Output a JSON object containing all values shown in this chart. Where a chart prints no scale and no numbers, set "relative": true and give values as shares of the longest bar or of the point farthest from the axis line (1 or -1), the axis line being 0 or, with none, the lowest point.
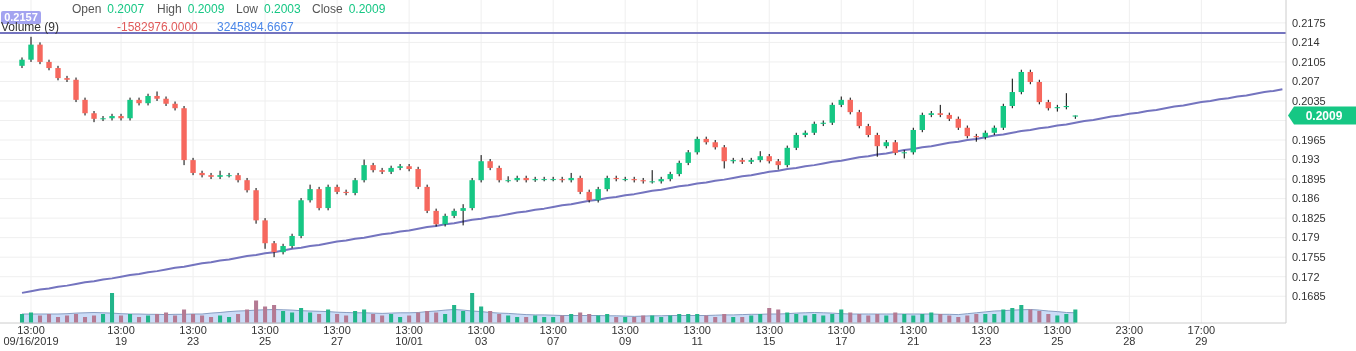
{
  "chart_data": [
    {
      "type": "candlestick",
      "categories": [
        null,
        "13:00\n09/16/2019",
        null,
        null,
        null,
        null,
        null,
        null,
        null,
        null,
        null,
        "13:00\n19",
        null,
        null,
        null,
        null,
        null,
        null,
        null,
        "13:00\n23",
        null,
        null,
        null,
        null,
        null,
        null,
        null,
        "13:00\n25",
        null,
        null,
        null,
        null,
        null,
        null,
        null,
        "13:00\n27",
        null,
        null,
        null,
        null,
        null,
        null,
        null,
        "13:00\n10/01",
        null,
        null,
        null,
        null,
        null,
        null,
        null,
        "13:00\n03",
        null,
        null,
        null,
        null,
        null,
        null,
        null,
        "13:00\n07",
        null,
        null,
        null,
        null,
        null,
        null,
        null,
        "13:00\n09",
        null,
        null,
        null,
        null,
        null,
        null,
        null,
        "13:00\n11",
        null,
        null,
        null,
        null,
        null,
        null,
        null,
        "13:00\n15",
        null,
        null,
        null,
        null,
        null,
        null,
        null,
        "13:00\n17",
        null,
        null,
        null,
        null,
        null,
        null,
        null,
        "13:00\n21",
        null,
        null,
        null,
        null,
        null,
        null,
        null,
        "13:00\n23",
        null,
        null,
        null,
        null,
        null,
        null,
        null,
        "13:00\n25",
        null,
        null,
        null,
        null,
        null,
        null,
        null,
        "23:00\n28",
        null,
        null,
        null,
        null,
        null,
        null,
        null,
        "17:00\n29",
        null,
        null,
        null,
        null,
        null,
        null,
        null,
        null,
        null
      ],
      "ohlc": [
        [
          0.2098,
          0.2113,
          0.2094,
          0.2109
        ],
        [
          0.2109,
          0.215,
          0.2105,
          0.2136
        ],
        [
          0.2136,
          0.214,
          0.2101,
          0.2105
        ],
        [
          0.2105,
          0.2109,
          0.209,
          0.2094
        ],
        [
          0.2094,
          0.2098,
          0.2072,
          0.2076
        ],
        [
          0.2076,
          0.208,
          0.2069,
          0.2073
        ],
        [
          0.2073,
          0.2077,
          0.2033,
          0.2037
        ],
        [
          0.2037,
          0.2041,
          0.2009,
          0.2013
        ],
        [
          0.2013,
          0.2017,
          0.1997,
          0.2003
        ],
        [
          0.2003,
          0.2008,
          0.1999,
          0.2004
        ],
        [
          0.2004,
          0.2012,
          0.2,
          0.2008
        ],
        [
          0.2008,
          0.2012,
          0.2,
          0.2004
        ],
        [
          0.2004,
          0.2041,
          0.2,
          0.2037
        ],
        [
          0.2037,
          0.2041,
          0.2027,
          0.2031
        ],
        [
          0.2031,
          0.2048,
          0.2027,
          0.2044
        ],
        [
          0.2044,
          0.2052,
          0.2035,
          0.2039
        ],
        [
          0.2039,
          0.2043,
          0.2026,
          0.203
        ],
        [
          0.203,
          0.2034,
          0.2018,
          0.2022
        ],
        [
          0.2022,
          0.2026,
          0.192,
          0.1929
        ],
        [
          0.1929,
          0.1933,
          0.1902,
          0.1906
        ],
        [
          0.1906,
          0.191,
          0.1898,
          0.1902
        ],
        [
          0.1902,
          0.1906,
          0.1895,
          0.1899
        ],
        [
          0.1899,
          0.191,
          0.1895,
          0.1902
        ],
        [
          0.1902,
          0.1906,
          0.1898,
          0.1902
        ],
        [
          0.1902,
          0.1906,
          0.1889,
          0.1893
        ],
        [
          0.1893,
          0.1897,
          0.1871,
          0.1875
        ],
        [
          0.1875,
          0.1879,
          0.1815,
          0.1821
        ],
        [
          0.1821,
          0.1825,
          0.177,
          0.178
        ],
        [
          0.178,
          0.1784,
          0.1755,
          0.1764
        ],
        [
          0.1764,
          0.1779,
          0.176,
          0.1775
        ],
        [
          0.1775,
          0.1797,
          0.1771,
          0.1793
        ],
        [
          0.1793,
          0.1861,
          0.1789,
          0.1857
        ],
        [
          0.1857,
          0.1885,
          0.1853,
          0.1877
        ],
        [
          0.1877,
          0.1881,
          0.1839,
          0.1843
        ],
        [
          0.1843,
          0.1885,
          0.1839,
          0.1881
        ],
        [
          0.1881,
          0.1885,
          0.1868,
          0.1872
        ],
        [
          0.1872,
          0.1876,
          0.1866,
          0.187
        ],
        [
          0.187,
          0.1897,
          0.1866,
          0.1893
        ],
        [
          0.1893,
          0.193,
          0.1889,
          0.192
        ],
        [
          0.192,
          0.1924,
          0.1907,
          0.1911
        ],
        [
          0.1911,
          0.1915,
          0.1904,
          0.1908
        ],
        [
          0.1908,
          0.1919,
          0.1904,
          0.1915
        ],
        [
          0.1915,
          0.1922,
          0.1911,
          0.1918
        ],
        [
          0.1918,
          0.1922,
          0.1909,
          0.1913
        ],
        [
          0.1913,
          0.1917,
          0.1877,
          0.1881
        ],
        [
          0.1881,
          0.1885,
          0.1834,
          0.1838
        ],
        [
          0.1838,
          0.1842,
          0.181,
          0.1814
        ],
        [
          0.1814,
          0.1833,
          0.181,
          0.1829
        ],
        [
          0.1829,
          0.1842,
          0.1825,
          0.1838
        ],
        [
          0.1838,
          0.185,
          0.1812,
          0.1843
        ],
        [
          0.1843,
          0.1897,
          0.1839,
          0.1893
        ],
        [
          0.1893,
          0.1938,
          0.1889,
          0.1927
        ],
        [
          0.1927,
          0.1931,
          0.1911,
          0.1915
        ],
        [
          0.1915,
          0.1919,
          0.1889,
          0.1893
        ],
        [
          0.1893,
          0.19,
          0.1889,
          0.1893
        ],
        [
          0.1893,
          0.1901,
          0.189,
          0.1897
        ],
        [
          0.1897,
          0.1901,
          0.1889,
          0.1893
        ],
        [
          0.1893,
          0.1899,
          0.189,
          0.1895
        ],
        [
          0.1895,
          0.1899,
          0.1891,
          0.1895
        ],
        [
          0.1895,
          0.1899,
          0.1891,
          0.1895
        ],
        [
          0.1895,
          0.1899,
          0.1889,
          0.1893
        ],
        [
          0.1893,
          0.1906,
          0.1889,
          0.1897
        ],
        [
          0.1897,
          0.1901,
          0.1868,
          0.1872
        ],
        [
          0.1872,
          0.1876,
          0.1853,
          0.1857
        ],
        [
          0.1857,
          0.1881,
          0.1853,
          0.1877
        ],
        [
          0.1877,
          0.1901,
          0.1873,
          0.1897
        ],
        [
          0.1897,
          0.1901,
          0.1891,
          0.1895
        ],
        [
          0.1895,
          0.1899,
          0.1891,
          0.1895
        ],
        [
          0.1895,
          0.1899,
          0.1889,
          0.1893
        ],
        [
          0.1893,
          0.1897,
          0.1887,
          0.1891
        ],
        [
          0.1891,
          0.1911,
          0.1887,
          0.1891
        ],
        [
          0.1891,
          0.1899,
          0.1887,
          0.1895
        ],
        [
          0.1895,
          0.1908,
          0.1891,
          0.1904
        ],
        [
          0.1904,
          0.1928,
          0.19,
          0.1924
        ],
        [
          0.1924,
          0.1947,
          0.192,
          0.1943
        ],
        [
          0.1943,
          0.1971,
          0.1939,
          0.1967
        ],
        [
          0.1967,
          0.1971,
          0.1957,
          0.1961
        ],
        [
          0.1961,
          0.1965,
          0.1948,
          0.1952
        ],
        [
          0.1952,
          0.1956,
          0.1914,
          0.1927
        ],
        [
          0.1927,
          0.1933,
          0.1923,
          0.1929
        ],
        [
          0.1929,
          0.1933,
          0.1922,
          0.1926
        ],
        [
          0.1926,
          0.1933,
          0.1922,
          0.1929
        ],
        [
          0.1929,
          0.1945,
          0.1925,
          0.1936
        ],
        [
          0.1936,
          0.194,
          0.1923,
          0.1927
        ],
        [
          0.1927,
          0.1931,
          0.1912,
          0.192
        ],
        [
          0.192,
          0.1955,
          0.1916,
          0.1951
        ],
        [
          0.1951,
          0.1978,
          0.1947,
          0.1974
        ],
        [
          0.1974,
          0.1982,
          0.197,
          0.1978
        ],
        [
          0.1978,
          0.1998,
          0.1974,
          0.1994
        ],
        [
          0.1994,
          0.2,
          0.199,
          0.1996
        ],
        [
          0.1996,
          0.2032,
          0.1992,
          0.2028
        ],
        [
          0.2028,
          0.2043,
          0.2024,
          0.2037
        ],
        [
          0.2037,
          0.2041,
          0.2011,
          0.2015
        ],
        [
          0.2015,
          0.2019,
          0.1986,
          0.199
        ],
        [
          0.199,
          0.1994,
          0.197,
          0.1974
        ],
        [
          0.1974,
          0.1978,
          0.1935,
          0.1954
        ],
        [
          0.1954,
          0.1965,
          0.195,
          0.1961
        ],
        [
          0.1961,
          0.1965,
          0.1938,
          0.1942
        ],
        [
          0.1942,
          0.1947,
          0.1932,
          0.1943
        ],
        [
          0.1943,
          0.1987,
          0.1939,
          0.1983
        ],
        [
          0.1983,
          0.2014,
          0.1979,
          0.201
        ],
        [
          0.201,
          0.2017,
          0.2006,
          0.2013
        ],
        [
          0.2013,
          0.2028,
          0.2006,
          0.201
        ],
        [
          0.201,
          0.2014,
          0.1999,
          0.2003
        ],
        [
          0.2003,
          0.2007,
          0.1983,
          0.1987
        ],
        [
          0.1987,
          0.1991,
          0.1968,
          0.1972
        ],
        [
          0.1972,
          0.1976,
          0.1962,
          0.197
        ],
        [
          0.197,
          0.1982,
          0.1966,
          0.1978
        ],
        [
          0.1978,
          0.1991,
          0.1974,
          0.1987
        ],
        [
          0.1987,
          0.203,
          0.1983,
          0.2026
        ],
        [
          0.2026,
          0.2075,
          0.2022,
          0.2051
        ],
        [
          0.2051,
          0.2091,
          0.2047,
          0.2087
        ],
        [
          0.2087,
          0.2091,
          0.2065,
          0.2069
        ],
        [
          0.2069,
          0.2073,
          0.2029,
          0.2033
        ],
        [
          0.2033,
          0.2037,
          0.2018,
          0.2022
        ],
        [
          0.2022,
          0.2028,
          0.2016,
          0.2024
        ],
        [
          0.2024,
          0.2049,
          0.202,
          0.2026
        ],
        [
          0.2007,
          0.2009,
          0.2003,
          0.2009
        ],
        null,
        null,
        null,
        null,
        null,
        null,
        null,
        null,
        null,
        null,
        null,
        null,
        null,
        null,
        null,
        null,
        null,
        null,
        null,
        null,
        null,
        null,
        null
      ],
      "series": [
        {
          "type": "line",
          "color": "#7474bf",
          "values": [
            0.1691,
            0.1694,
            0.1697,
            0.1699,
            0.1702,
            0.1704,
            0.1707,
            0.171,
            0.1712,
            0.1715,
            0.1717,
            0.172,
            0.1723,
            0.1725,
            0.1728,
            0.173,
            0.1733,
            0.1736,
            0.1738,
            0.1741,
            0.1744,
            0.1746,
            0.1749,
            0.1751,
            0.1754,
            0.1757,
            0.1759,
            0.1762,
            0.1764,
            0.1767,
            0.177,
            0.1772,
            0.1775,
            0.1777,
            0.178,
            0.1783,
            0.1785,
            0.1788,
            0.179,
            0.1793,
            0.1796,
            0.1798,
            0.1801,
            0.1803,
            0.1806,
            0.1809,
            0.1811,
            0.1814,
            0.1816,
            0.1819,
            0.1822,
            0.1824,
            0.1827,
            0.1829,
            0.1832,
            0.1835,
            0.1837,
            0.184,
            0.1842,
            0.1845,
            0.1848,
            0.185,
            0.1853,
            0.1856,
            0.1858,
            0.1861,
            0.1863,
            0.1866,
            0.1868,
            0.1871,
            0.1874,
            0.1876,
            0.1879,
            0.1882,
            0.1884,
            0.1887,
            0.1889,
            0.1892,
            0.1894,
            0.1897,
            0.19,
            0.1902,
            0.1905,
            0.1908,
            0.191,
            0.1913,
            0.1915,
            0.1918,
            0.192,
            0.1923,
            0.1926,
            0.1928,
            0.1931,
            0.1934,
            0.1936,
            0.1939,
            0.1941,
            0.1944,
            0.1947,
            0.1949,
            0.1952,
            0.1954,
            0.1957,
            0.196,
            0.1962,
            0.1965,
            0.1967,
            0.197,
            0.1973,
            0.1975,
            0.1978,
            0.1981,
            0.1983,
            0.1986,
            0.1988,
            0.1991,
            0.1993,
            0.1996,
            0.1999,
            0.2001,
            0.2004,
            0.2007,
            0.2009,
            0.2012,
            0.2014,
            0.2017,
            0.2019,
            0.2022,
            0.2025,
            0.2027,
            0.203,
            0.2033,
            0.2035,
            0.2038,
            0.204,
            0.2043,
            0.2045,
            0.2048,
            0.2051,
            0.2053,
            0.2056
          ]
        }
      ],
      "ylim": [
        0.1637,
        0.2216
      ],
      "yticks": [
        0.1685,
        0.172,
        0.1755,
        0.179,
        0.1825,
        0.186,
        0.1895,
        0.193,
        0.1965,
        {
          "value": 0.2,
          "label": null
        },
        0.2035,
        0.207,
        0.2105,
        0.214,
        0.2175
      ],
      "grid": true,
      "ref_lines": [
        {
          "axis": "y",
          "value": 0.2157,
          "label": "0.2157",
          "color": "#7474bf"
        }
      ],
      "annotations": [
        "Open 0.2007",
        "High 0.2009",
        "Low 0.2003",
        "Close 0.2009",
        "Volume (9)",
        "-1582976.0000",
        "3245894.6667",
        "0.2009"
      ]
    },
    {
      "type": "bar",
      "relative": true,
      "categories": [
        null,
        null,
        null,
        null,
        null,
        null,
        null,
        null,
        null,
        null,
        null,
        null,
        null,
        null,
        null,
        null,
        null,
        null,
        null,
        null,
        null,
        null,
        null,
        null,
        null,
        null,
        null,
        null,
        null,
        null,
        null,
        null,
        null,
        null,
        null,
        null,
        null,
        null,
        null,
        null,
        null,
        null,
        null,
        null,
        null,
        null,
        null,
        null,
        null,
        null,
        null,
        null,
        null,
        null,
        null,
        null,
        null,
        null,
        null,
        null,
        null,
        null,
        null,
        null,
        null,
        null,
        null,
        null,
        null,
        null,
        null,
        null,
        null,
        null,
        null,
        null,
        null,
        null,
        null,
        null,
        null,
        null,
        null,
        null,
        null,
        null,
        null,
        null,
        null,
        null,
        null,
        null,
        null,
        null,
        null,
        null,
        null,
        null,
        null,
        null,
        null,
        null,
        null,
        null,
        null,
        null,
        null,
        null,
        null,
        null,
        null,
        null,
        null,
        null,
        null,
        null,
        null,
        null,
        null,
        null,
        null,
        null,
        null,
        null,
        null,
        null,
        null,
        null,
        null,
        null,
        null,
        null,
        null,
        null,
        null,
        null,
        null,
        null,
        null,
        null,
        null
      ],
      "series": [
        {
          "type": "area",
          "color": "#a9c4f2",
          "values": [
            0.3,
            0.3,
            0.3,
            0.3,
            0.3,
            0.31,
            0.33,
            0.34,
            0.35,
            0.34,
            0.33,
            0.31,
            0.3,
            0.3,
            0.29,
            0.29,
            0.28,
            0.29,
            0.29,
            0.3,
            0.3,
            0.33,
            0.35,
            0.38,
            0.4,
            0.41,
            0.43,
            0.44,
            0.45,
            0.44,
            0.43,
            0.41,
            0.4,
            0.39,
            0.38,
            0.36,
            0.35,
            0.34,
            0.34,
            0.33,
            0.32,
            0.33,
            0.34,
            0.34,
            0.35,
            0.38,
            0.4,
            0.43,
            0.45,
            0.43,
            0.4,
            0.38,
            0.35,
            0.33,
            0.32,
            0.3,
            0.28,
            0.27,
            0.27,
            0.26,
            0.25,
            0.25,
            0.25,
            0.25,
            0.25,
            0.24,
            0.24,
            0.23,
            0.22,
            0.23,
            0.24,
            0.24,
            0.25,
            0.25,
            0.25,
            0.25,
            0.25,
            0.26,
            0.27,
            0.27,
            0.28,
            0.29,
            0.29,
            0.3,
            0.3,
            0.31,
            0.33,
            0.34,
            0.35,
            0.34,
            0.33,
            0.31,
            0.3,
            0.3,
            0.3,
            0.3,
            0.3,
            0.3,
            0.3,
            0.3,
            0.3,
            0.3,
            0.29,
            0.29,
            0.28,
            0.31,
            0.34,
            0.37,
            0.4,
            0.41,
            0.43,
            0.44,
            0.45,
            0.43,
            0.4,
            0.38,
            0.35,
            0.34,
            null,
            null,
            null,
            null,
            null,
            null,
            null,
            null,
            null,
            null,
            null,
            null,
            null,
            null,
            null,
            null,
            null,
            null,
            null,
            null,
            null,
            null,
            null
          ]
        },
        {
          "type": "bar",
          "values": [
            0.3,
            0.35,
            0.25,
            0.3,
            0.2,
            0.25,
            0.3,
            0.2,
            0.25,
            0.3,
            1.0,
            0.25,
            0.3,
            0.2,
            0.25,
            0.3,
            0.35,
            0.25,
            0.45,
            0.3,
            0.25,
            0.2,
            0.25,
            0.2,
            0.3,
            0.45,
            0.75,
            0.55,
            0.6,
            0.4,
            0.35,
            0.5,
            0.35,
            0.3,
            0.45,
            0.3,
            0.25,
            0.4,
            0.45,
            0.3,
            0.25,
            0.3,
            0.2,
            0.25,
            0.35,
            0.4,
            0.35,
            0.3,
            0.6,
            0.4,
            1.0,
            0.55,
            0.4,
            0.3,
            0.25,
            0.2,
            0.2,
            0.25,
            0.2,
            0.2,
            0.25,
            0.3,
            0.35,
            0.3,
            0.25,
            0.3,
            0.2,
            0.2,
            0.2,
            0.25,
            0.25,
            0.2,
            0.25,
            0.3,
            0.3,
            0.3,
            0.25,
            0.2,
            0.3,
            0.2,
            0.2,
            0.25,
            0.3,
            0.5,
            0.45,
            0.35,
            0.3,
            0.25,
            0.3,
            0.25,
            0.3,
            0.45,
            0.35,
            0.3,
            0.25,
            0.3,
            0.25,
            0.35,
            0.3,
            0.25,
            0.3,
            0.35,
            0.3,
            0.25,
            0.2,
            0.25,
            0.3,
            0.3,
            0.3,
            0.45,
            0.5,
            0.6,
            0.45,
            0.4,
            0.3,
            0.25,
            0.3,
            0.45,
            null,
            null,
            null,
            null,
            null,
            null,
            null,
            null,
            null,
            null,
            null,
            null,
            null,
            null,
            null,
            null,
            null,
            null,
            null,
            null,
            null,
            null,
            null
          ],
          "colors": [
            "#22b58a",
            "#22b58a",
            "#b47a93",
            "#b47a93",
            "#b47a93",
            "#b47a93",
            "#b47a93",
            "#b47a93",
            "#b47a93",
            "#22b58a",
            "#22b58a",
            "#b47a93",
            "#22b58a",
            "#b47a93",
            "#22b58a",
            "#b47a93",
            "#b47a93",
            "#b47a93",
            "#b47a93",
            "#b47a93",
            "#b47a93",
            "#b47a93",
            "#22b58a",
            "#22b58a",
            "#b47a93",
            "#b47a93",
            "#b47a93",
            "#b47a93",
            "#b47a93",
            "#22b58a",
            "#22b58a",
            "#22b58a",
            "#22b58a",
            "#b47a93",
            "#22b58a",
            "#b47a93",
            "#b47a93",
            "#22b58a",
            "#22b58a",
            "#b47a93",
            "#b47a93",
            "#22b58a",
            "#22b58a",
            "#b47a93",
            "#b47a93",
            "#b47a93",
            "#b47a93",
            "#22b58a",
            "#22b58a",
            "#22b58a",
            "#22b58a",
            "#22b58a",
            "#b47a93",
            "#b47a93",
            "#22b58a",
            "#22b58a",
            "#b47a93",
            "#22b58a",
            "#22b58a",
            "#22b58a",
            "#b47a93",
            "#22b58a",
            "#b47a93",
            "#b47a93",
            "#22b58a",
            "#22b58a",
            "#b47a93",
            "#22b58a",
            "#b47a93",
            "#b47a93",
            "#22b58a",
            "#22b58a",
            "#22b58a",
            "#22b58a",
            "#22b58a",
            "#22b58a",
            "#b47a93",
            "#b47a93",
            "#b47a93",
            "#22b58a",
            "#b47a93",
            "#22b58a",
            "#22b58a",
            "#b47a93",
            "#b47a93",
            "#22b58a",
            "#22b58a",
            "#22b58a",
            "#22b58a",
            "#22b58a",
            "#22b58a",
            "#22b58a",
            "#b47a93",
            "#b47a93",
            "#b47a93",
            "#b47a93",
            "#22b58a",
            "#b47a93",
            "#22b58a",
            "#22b58a",
            "#22b58a",
            "#22b58a",
            "#b47a93",
            "#b47a93",
            "#b47a93",
            "#b47a93",
            "#b47a93",
            "#22b58a",
            "#22b58a",
            "#22b58a",
            "#22b58a",
            "#22b58a",
            "#b47a93",
            "#b47a93",
            "#b47a93",
            "#22b58a",
            "#22b58a",
            "#22b58a",
            null,
            null,
            null,
            null,
            null,
            null,
            null,
            null,
            null,
            null,
            null,
            null,
            null,
            null,
            null,
            null,
            null,
            null,
            null,
            null,
            null,
            null,
            null
          ]
        }
      ]
    }
  ]
}
